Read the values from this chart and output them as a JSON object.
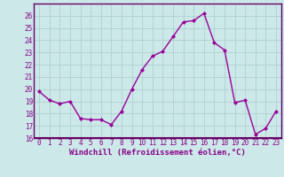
{
  "x": [
    0,
    1,
    2,
    3,
    4,
    5,
    6,
    7,
    8,
    9,
    10,
    11,
    12,
    13,
    14,
    15,
    16,
    17,
    18,
    19,
    20,
    21,
    22,
    23
  ],
  "y": [
    19.8,
    19.1,
    18.8,
    19.0,
    17.6,
    17.5,
    17.5,
    17.1,
    18.2,
    20.0,
    21.6,
    22.7,
    23.1,
    24.3,
    25.5,
    25.6,
    26.2,
    23.8,
    23.2,
    18.9,
    19.1,
    16.3,
    16.8,
    18.2
  ],
  "line_color": "#990099",
  "marker": "D",
  "marker_size": 2,
  "line_width": 1.0,
  "background_color": "#cce8e8",
  "plot_bg_color": "#cce8e8",
  "grid_color": "#aacccc",
  "xlabel": "Windchill (Refroidissement éolien,°C)",
  "ylabel": "",
  "ylim": [
    16,
    27
  ],
  "xlim": [
    -0.5,
    23.5
  ],
  "yticks": [
    16,
    17,
    18,
    19,
    20,
    21,
    22,
    23,
    24,
    25,
    26
  ],
  "xticks": [
    0,
    1,
    2,
    3,
    4,
    5,
    6,
    7,
    8,
    9,
    10,
    11,
    12,
    13,
    14,
    15,
    16,
    17,
    18,
    19,
    20,
    21,
    22,
    23
  ],
  "tick_label_size": 5.5,
  "xlabel_size": 6.5,
  "spine_color": "#880088",
  "border_color": "#660066"
}
